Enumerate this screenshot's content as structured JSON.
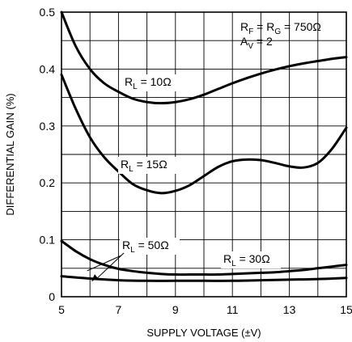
{
  "chart_data": {
    "type": "line",
    "title": "",
    "xlabel": "SUPPLY VOLTAGE (±V)",
    "ylabel": "DIFFERENTIAL GAIN (%)",
    "xlim": [
      5,
      15
    ],
    "ylim": [
      0,
      0.5
    ],
    "x_ticks": [
      "5",
      "7",
      "9",
      "11",
      "13",
      "15"
    ],
    "y_ticks": [
      "0",
      "0.1",
      "0.2",
      "0.3",
      "0.4",
      "0.5"
    ],
    "grid": true,
    "legend": "none",
    "conditions": {
      "line1": {
        "main": "R",
        "sub": "F",
        "rest": " = R",
        "sub2": "G",
        "tail": " = 750Ω"
      },
      "line2": {
        "main": "A",
        "sub": "V",
        "rest": " = 2"
      }
    },
    "series": [
      {
        "label": {
          "main": "R",
          "sub": "L",
          "rest": " = 10Ω"
        },
        "x": [
          5.0,
          5.5,
          6.0,
          6.5,
          7.0,
          7.5,
          8.0,
          8.5,
          9.0,
          9.5,
          10.0,
          10.5,
          11.0,
          11.5,
          12.0,
          12.5,
          13.0,
          13.5,
          14.0,
          14.5,
          15.0
        ],
        "values": [
          0.5,
          0.44,
          0.4,
          0.375,
          0.36,
          0.348,
          0.342,
          0.34,
          0.342,
          0.347,
          0.355,
          0.365,
          0.375,
          0.384,
          0.392,
          0.399,
          0.405,
          0.41,
          0.414,
          0.418,
          0.421
        ]
      },
      {
        "label": {
          "main": "R",
          "sub": "L",
          "rest": " = 15Ω"
        },
        "x": [
          5.0,
          5.5,
          6.0,
          6.5,
          7.0,
          7.5,
          8.0,
          8.5,
          9.0,
          9.5,
          10.0,
          10.5,
          11.0,
          11.5,
          12.0,
          12.5,
          13.0,
          13.5,
          14.0,
          14.5,
          15.0
        ],
        "values": [
          0.39,
          0.33,
          0.28,
          0.245,
          0.22,
          0.198,
          0.187,
          0.182,
          0.186,
          0.196,
          0.212,
          0.228,
          0.238,
          0.241,
          0.24,
          0.235,
          0.229,
          0.227,
          0.235,
          0.26,
          0.297
        ]
      },
      {
        "label": {
          "main": "R",
          "sub": "L",
          "rest": " = 30Ω"
        },
        "x": [
          5.0,
          5.5,
          6.0,
          6.5,
          7.0,
          7.5,
          8.0,
          8.5,
          9.0,
          9.5,
          10.0,
          10.5,
          11.0,
          11.5,
          12.0,
          12.5,
          13.0,
          13.5,
          14.0,
          14.5,
          15.0
        ],
        "values": [
          0.098,
          0.08,
          0.066,
          0.056,
          0.049,
          0.045,
          0.042,
          0.04,
          0.039,
          0.039,
          0.039,
          0.039,
          0.04,
          0.041,
          0.042,
          0.043,
          0.045,
          0.047,
          0.05,
          0.053,
          0.056
        ]
      },
      {
        "label": {
          "main": "R",
          "sub": "L",
          "rest": " = 50Ω"
        },
        "x": [
          5.0,
          6.0,
          7.0,
          8.0,
          9.0,
          10.0,
          11.0,
          12.0,
          13.0,
          14.0,
          15.0
        ],
        "values": [
          0.036,
          0.032,
          0.029,
          0.028,
          0.028,
          0.028,
          0.028,
          0.029,
          0.03,
          0.031,
          0.033
        ]
      }
    ]
  }
}
